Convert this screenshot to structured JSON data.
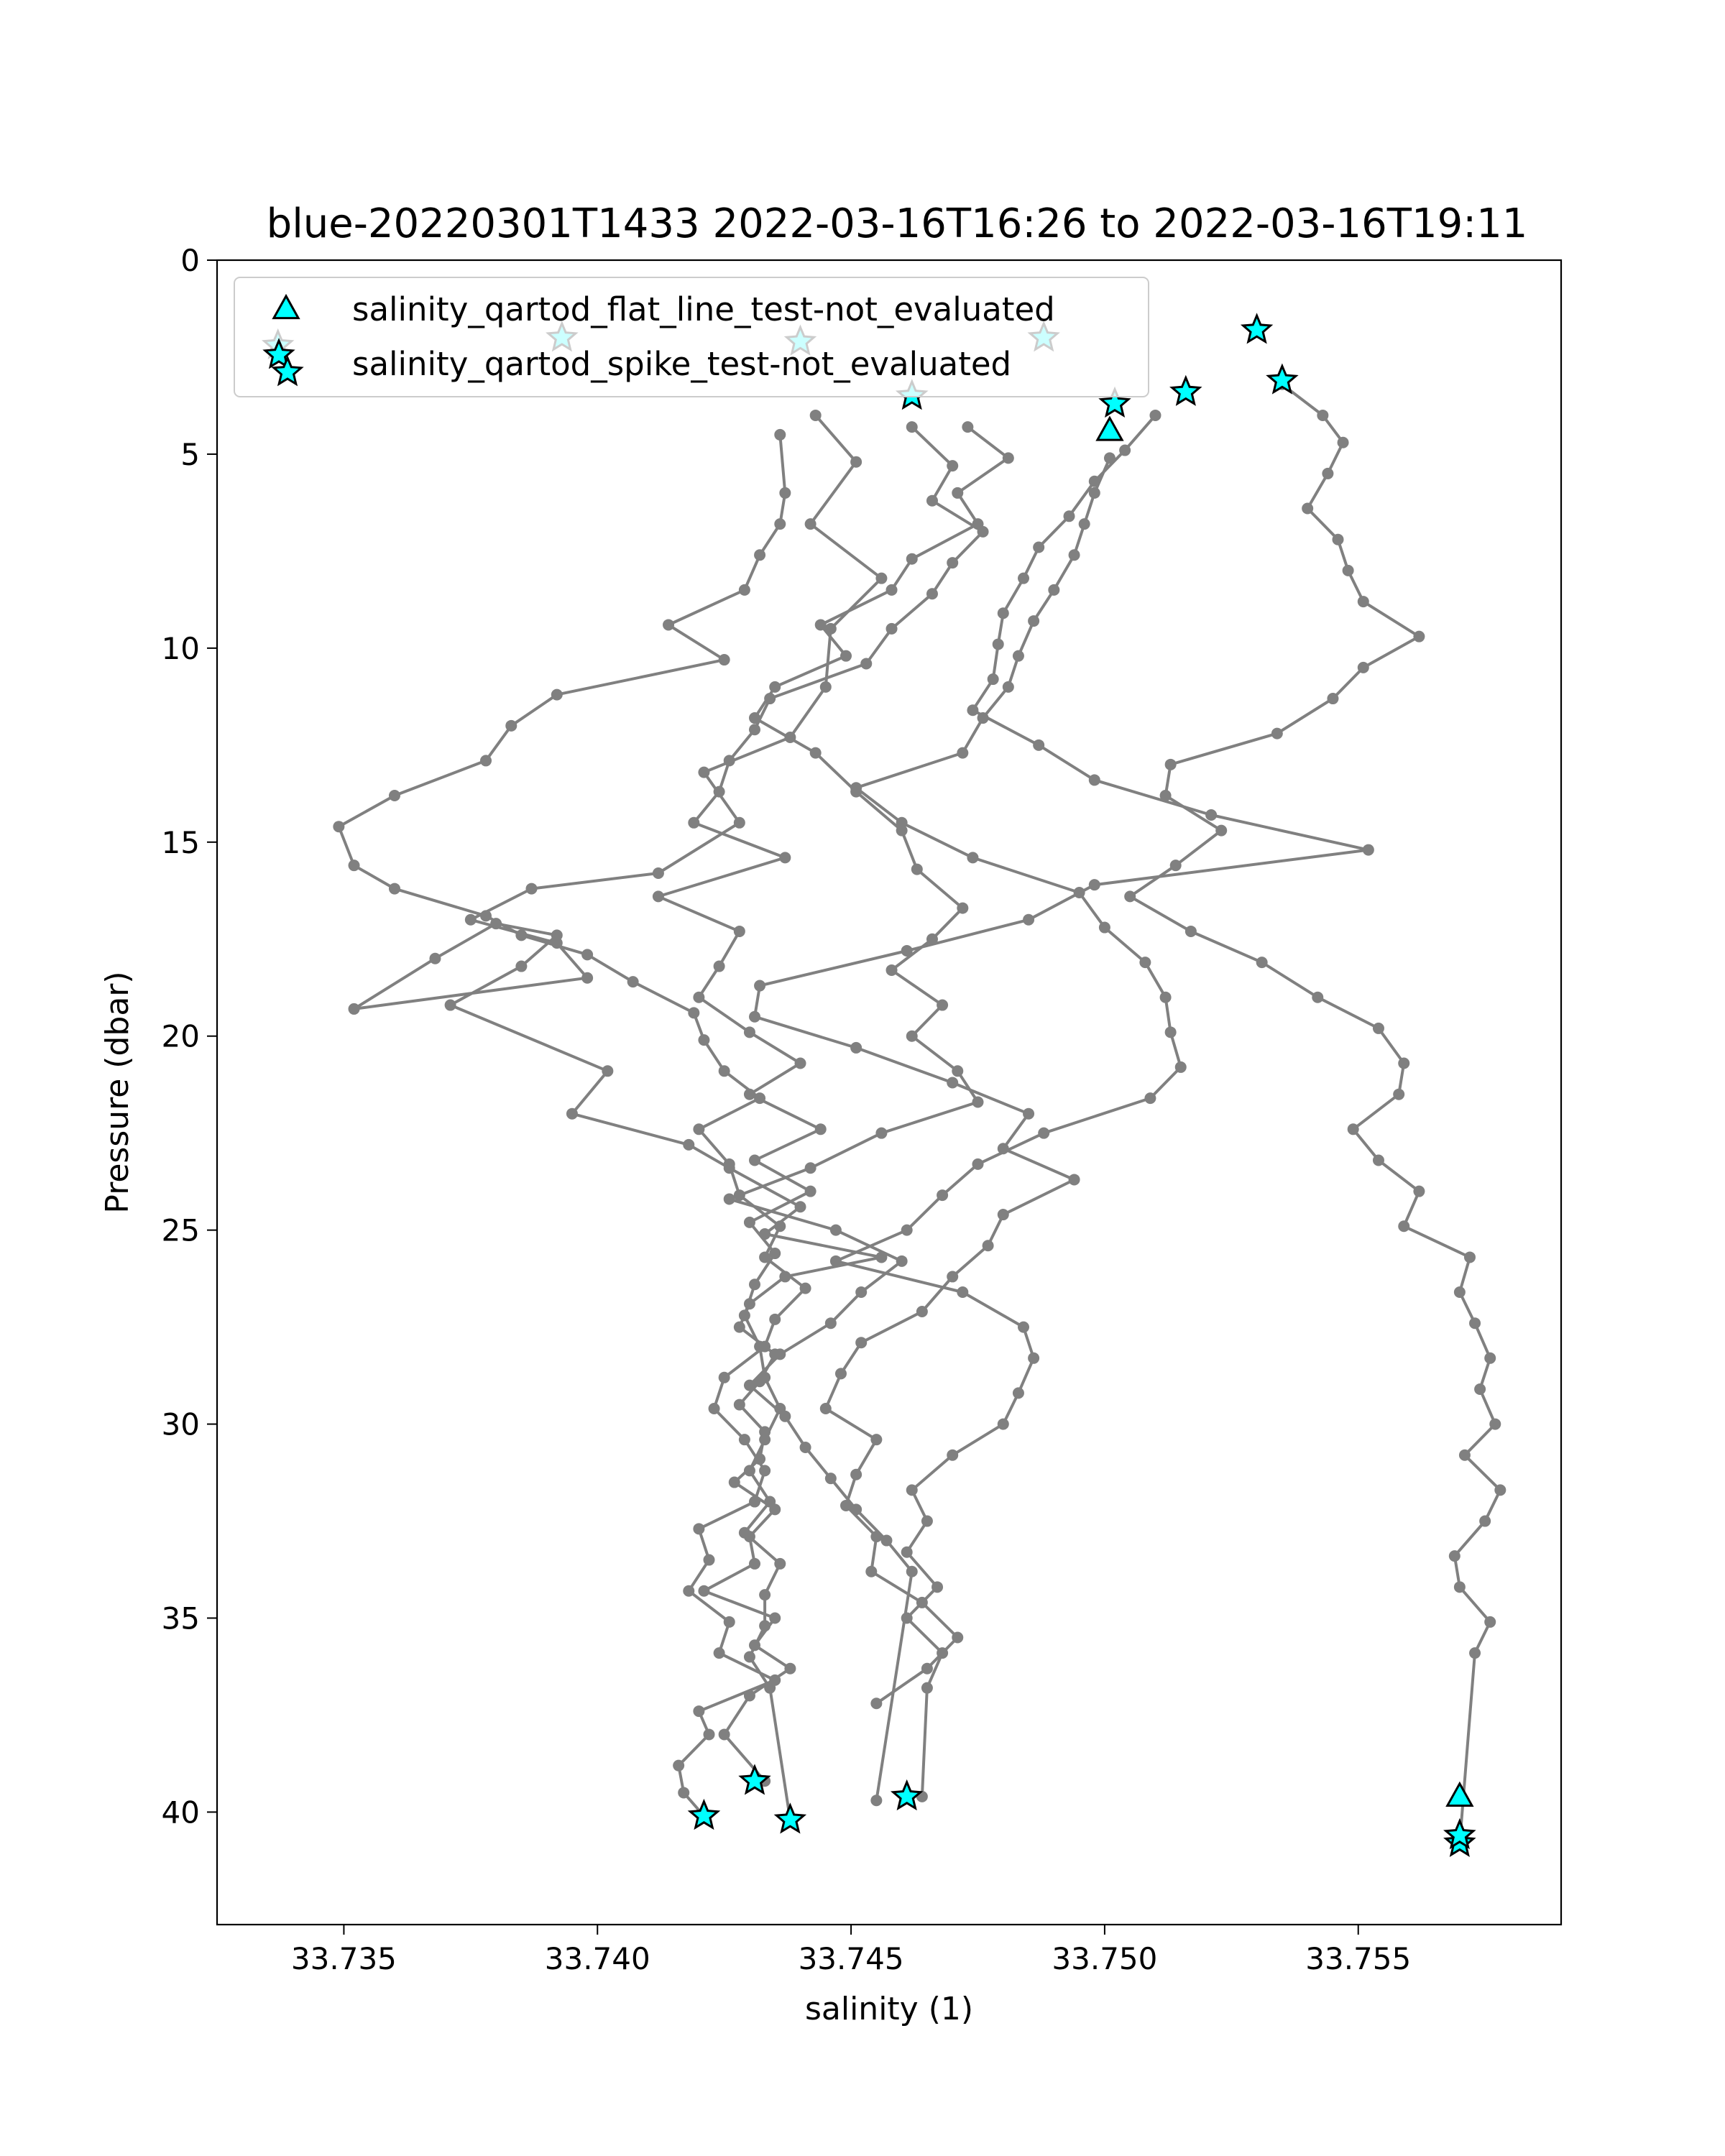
{
  "chart_data": {
    "type": "line",
    "title": "blue-20220301T1433 2022-03-16T16:26 to 2022-03-16T19:11",
    "xlabel": "salinity (1)",
    "ylabel": "Pressure (dbar)",
    "xlim": [
      33.7325,
      33.759
    ],
    "ylim": [
      42.9,
      0
    ],
    "y_inverted": true,
    "grid": false,
    "xticks": [
      "33.735",
      "33.740",
      "33.745",
      "33.750",
      "33.755"
    ],
    "yticks": [
      "0",
      "5",
      "10",
      "15",
      "20",
      "25",
      "30",
      "35",
      "40"
    ],
    "line_color": "#808080",
    "legend": {
      "placement": "top-left",
      "entries": [
        {
          "label": "salinity_qartod_flat_line_test-not_evaluated",
          "marker": "triangle",
          "color": "#00ffff"
        },
        {
          "label": "salinity_qartod_spike_test-not_evaluated",
          "marker": "star",
          "color": "#00ffff"
        }
      ]
    },
    "series": [
      {
        "x": [
          33.7443,
          33.7451,
          33.7442,
          33.7456,
          33.7446,
          33.7445,
          33.7438,
          33.7421,
          33.7428,
          33.7412,
          33.7387,
          33.7375,
          33.7392,
          33.7398,
          33.7352,
          33.7368,
          33.738,
          33.7392,
          33.7385,
          33.7371,
          33.7402,
          33.7395,
          33.7418,
          33.7426,
          33.744,
          33.7433,
          33.7456,
          33.7437,
          33.743,
          33.7428,
          33.7435,
          33.7432,
          33.7428,
          33.7433,
          33.7432,
          33.7427,
          33.7435,
          33.743,
          33.7431,
          33.7421,
          33.7435,
          33.7431,
          33.7438,
          33.743,
          33.7425,
          33.7433
        ],
        "y": [
          4.0,
          5.2,
          6.8,
          8.2,
          9.5,
          11.0,
          12.3,
          13.2,
          14.5,
          15.8,
          16.2,
          17.0,
          17.6,
          18.5,
          19.3,
          18.0,
          17.1,
          17.4,
          18.2,
          19.2,
          20.9,
          22.0,
          22.8,
          23.4,
          24.4,
          25.1,
          25.7,
          26.2,
          26.9,
          27.5,
          28.2,
          28.9,
          29.5,
          30.2,
          30.9,
          31.5,
          32.2,
          32.9,
          33.6,
          34.3,
          35.0,
          35.7,
          36.3,
          37.0,
          38.0,
          39.2
        ]
      },
      {
        "x": [
          33.7436,
          33.7437,
          33.7436,
          33.7432,
          33.7429,
          33.7414,
          33.7425,
          33.7392,
          33.7383,
          33.7378,
          33.736,
          33.7349,
          33.7352,
          33.736,
          33.7378,
          33.7385,
          33.7398,
          33.7407,
          33.7419,
          33.7421,
          33.7425,
          33.7432,
          33.742,
          33.7426,
          33.7428,
          33.7436,
          33.7433,
          33.7441,
          33.7435,
          33.7433,
          33.7425,
          33.7423,
          33.7429,
          33.7433,
          33.7431,
          33.742,
          33.7422,
          33.7418,
          33.7426,
          33.7424,
          33.7435,
          33.742,
          33.7422,
          33.7416,
          33.7417,
          33.7421
        ],
        "y": [
          4.5,
          6.0,
          6.8,
          7.6,
          8.5,
          9.4,
          10.3,
          11.2,
          12.0,
          12.9,
          13.8,
          14.6,
          15.6,
          16.2,
          16.9,
          17.4,
          17.9,
          18.6,
          19.4,
          20.1,
          20.9,
          21.6,
          22.4,
          23.3,
          24.1,
          24.9,
          25.7,
          26.5,
          27.3,
          28.0,
          28.8,
          29.6,
          30.4,
          31.2,
          32.0,
          32.7,
          33.5,
          34.3,
          35.1,
          35.9,
          36.6,
          37.4,
          38.0,
          38.8,
          39.5,
          40.1
        ]
      },
      {
        "x": [
          33.7462,
          33.747,
          33.7466,
          33.7476,
          33.747,
          33.7466,
          33.7458,
          33.7453,
          33.7434,
          33.7431,
          33.7426,
          33.7424,
          33.7419,
          33.7437,
          33.7412,
          33.7428,
          33.7424,
          33.742,
          33.743,
          33.744,
          33.743,
          33.7444,
          33.7431,
          33.7442,
          33.743,
          33.7435,
          33.7431,
          33.7429,
          33.7432,
          33.7433,
          33.7436,
          33.7433,
          33.743,
          33.7434,
          33.7429,
          33.7436,
          33.7433,
          33.7433,
          33.743,
          33.7434,
          33.7438
        ],
        "y": [
          4.3,
          5.3,
          6.2,
          7.0,
          7.8,
          8.6,
          9.5,
          10.4,
          11.3,
          12.1,
          12.9,
          13.7,
          14.5,
          15.4,
          16.4,
          17.3,
          18.2,
          19.0,
          19.9,
          20.7,
          21.5,
          22.4,
          23.2,
          24.0,
          24.8,
          25.6,
          26.4,
          27.2,
          28.0,
          28.8,
          29.6,
          30.4,
          31.2,
          32.0,
          32.8,
          33.6,
          34.4,
          35.2,
          36.0,
          36.8,
          40.2
        ]
      },
      {
        "x": [
          33.7473,
          33.7481,
          33.7471,
          33.7475,
          33.7462,
          33.7458,
          33.7444,
          33.7449,
          33.7435,
          33.7431,
          33.7443,
          33.7451,
          33.746,
          33.7463,
          33.7472,
          33.7466,
          33.7458,
          33.7468,
          33.7462,
          33.7471,
          33.7475,
          33.7456,
          33.7442,
          33.7426,
          33.7447,
          33.746,
          33.7452,
          33.7446,
          33.7436,
          33.743,
          33.7437,
          33.7441,
          33.7446,
          33.7451,
          33.7457,
          33.7462,
          33.7455
        ],
        "y": [
          4.3,
          5.1,
          6.0,
          6.8,
          7.7,
          8.5,
          9.4,
          10.2,
          11.0,
          11.8,
          12.7,
          13.7,
          14.7,
          15.7,
          16.7,
          17.5,
          18.3,
          19.2,
          20.0,
          20.9,
          21.7,
          22.5,
          23.4,
          24.2,
          25.0,
          25.8,
          26.6,
          27.4,
          28.2,
          29.0,
          29.8,
          30.6,
          31.4,
          32.2,
          33.0,
          33.8,
          39.7
        ]
      },
      {
        "x": [
          33.7501,
          33.7498,
          33.7496,
          33.7494,
          33.749,
          33.7486,
          33.7483,
          33.7481,
          33.7476,
          33.7472,
          33.7451,
          33.746,
          33.7474,
          33.7495,
          33.75,
          33.7508,
          33.7512,
          33.7513,
          33.7515,
          33.7509,
          33.7488,
          33.7475,
          33.7468,
          33.7461,
          33.7447,
          33.7472,
          33.7484,
          33.7486,
          33.7483,
          33.748,
          33.747,
          33.7462,
          33.7465,
          33.7461,
          33.7467,
          33.7461,
          33.7468,
          33.7465,
          33.7464
        ],
        "y": [
          5.1,
          6.0,
          6.8,
          7.6,
          8.5,
          9.3,
          10.2,
          11.0,
          11.8,
          12.7,
          13.6,
          14.5,
          15.4,
          16.3,
          17.2,
          18.1,
          19.0,
          19.9,
          20.8,
          21.6,
          22.5,
          23.3,
          24.1,
          25.0,
          25.8,
          26.6,
          27.5,
          28.3,
          29.2,
          30.0,
          30.8,
          31.7,
          32.5,
          33.3,
          34.2,
          35.0,
          35.9,
          36.8,
          39.6
        ]
      },
      {
        "x": [
          33.751,
          33.7504,
          33.7498,
          33.7493,
          33.7487,
          33.7484,
          33.748,
          33.7479,
          33.7478,
          33.7474,
          33.7487,
          33.7498,
          33.7521,
          33.7552,
          33.7498,
          33.7485,
          33.7461,
          33.7432,
          33.7431,
          33.7451,
          33.747,
          33.7485,
          33.748,
          33.7494,
          33.748,
          33.7477,
          33.747,
          33.7464,
          33.7452,
          33.7448,
          33.7445,
          33.7455,
          33.7451,
          33.7449,
          33.7455,
          33.7454,
          33.7464,
          33.7471,
          33.7465,
          33.7455
        ],
        "y": [
          4.0,
          4.9,
          5.7,
          6.6,
          7.4,
          8.2,
          9.1,
          9.9,
          10.8,
          11.6,
          12.5,
          13.4,
          14.3,
          15.2,
          16.1,
          17.0,
          17.8,
          18.7,
          19.5,
          20.3,
          21.2,
          22.0,
          22.9,
          23.7,
          24.6,
          25.4,
          26.2,
          27.1,
          27.9,
          28.7,
          29.6,
          30.4,
          31.3,
          32.1,
          32.9,
          33.8,
          34.6,
          35.5,
          36.3,
          37.2
        ]
      },
      {
        "x": [
          33.7535,
          33.7543,
          33.7547,
          33.7544,
          33.754,
          33.7546,
          33.7548,
          33.7551,
          33.7562,
          33.7551,
          33.7545,
          33.7534,
          33.7513,
          33.7512,
          33.7523,
          33.7514,
          33.7505,
          33.7517,
          33.7531,
          33.7542,
          33.7554,
          33.7559,
          33.7558,
          33.7549,
          33.7554,
          33.7562,
          33.7559,
          33.7572,
          33.757,
          33.7573,
          33.7576,
          33.7574,
          33.7577,
          33.7571,
          33.7578,
          33.7575,
          33.7569,
          33.757,
          33.7576,
          33.7573,
          33.757
        ],
        "y": [
          3.2,
          4.0,
          4.7,
          5.5,
          6.4,
          7.2,
          8.0,
          8.8,
          9.7,
          10.5,
          11.3,
          12.2,
          13.0,
          13.8,
          14.7,
          15.6,
          16.4,
          17.3,
          18.1,
          19.0,
          19.8,
          20.7,
          21.5,
          22.4,
          23.2,
          24.0,
          24.9,
          25.7,
          26.6,
          27.4,
          28.3,
          29.1,
          30.0,
          30.8,
          31.7,
          32.5,
          33.4,
          34.2,
          35.1,
          35.9,
          40.8
        ]
      }
    ],
    "flat_line_markers": {
      "x": [
        33.7501,
        33.757
      ],
      "y": [
        4.4,
        39.6
      ]
    },
    "spike_markers": {
      "x": [
        33.7337,
        33.7393,
        33.744,
        33.7488,
        33.7502,
        33.7516,
        33.753,
        33.7535,
        33.7462,
        33.7421,
        33.7431,
        33.7438,
        33.7461,
        33.757,
        33.757
      ],
      "y": [
        2.2,
        2.0,
        2.1,
        2.0,
        3.7,
        3.4,
        1.8,
        3.1,
        3.5,
        40.1,
        39.2,
        40.2,
        39.6,
        40.8,
        40.6
      ]
    }
  }
}
